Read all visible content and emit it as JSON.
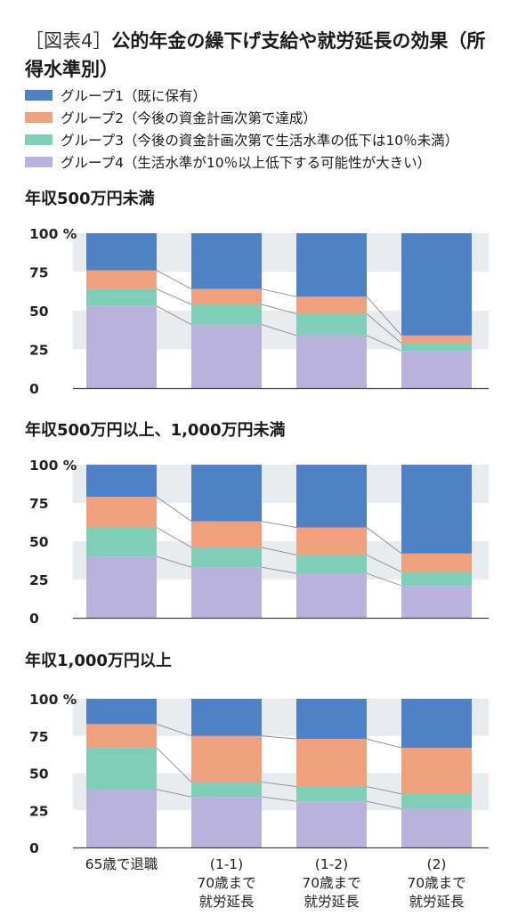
{
  "figure": {
    "tag": "［図表4］",
    "title": "公的年金の繰下げ支給や就労延長の効果（所得水準別）"
  },
  "colors": {
    "group1": "#4f81c7",
    "group2": "#f0a07d",
    "group3": "#7fcfb8",
    "group4": "#b8b2dc",
    "band": "#e9ecef",
    "connector": "#8a8a8a",
    "axis": "#444444"
  },
  "legend": [
    {
      "label": "グループ1（既に保有）",
      "color_key": "group1"
    },
    {
      "label": "グループ2（今後の資金計画次第で達成）",
      "color_key": "group2"
    },
    {
      "label": "グループ3（今後の資金計画次第で生活水準の低下は10％未満）",
      "color_key": "group3"
    },
    {
      "label": "グループ4（生活水準が10％以上低下する可能性が大きい）",
      "color_key": "group4"
    }
  ],
  "chart_data": [
    {
      "type": "bar",
      "stacked": true,
      "title": "年収500万円未満",
      "categories": [
        "65歳で退職",
        "(1-1)\n70歳まで\n就労延長",
        "(1-2)\n70歳まで\n就労延長",
        "(2)\n70歳まで\n就労延長"
      ],
      "ylim": [
        0,
        100
      ],
      "yticks": [
        0,
        25,
        50,
        75,
        100
      ],
      "ytick_labels": [
        "0",
        "25",
        "50",
        "75",
        "100 %"
      ],
      "series": [
        {
          "name": "グループ4（生活水準が10％以上低下する可能性が大きい）",
          "color_key": "group4",
          "values": [
            53,
            41,
            34,
            24
          ]
        },
        {
          "name": "グループ3（今後の資金計画次第で生活水準の低下は10％未満）",
          "color_key": "group3",
          "values": [
            11,
            13,
            14,
            5
          ]
        },
        {
          "name": "グループ2（今後の資金計画次第で達成）",
          "color_key": "group2",
          "values": [
            12,
            10,
            11,
            5
          ]
        },
        {
          "name": "グループ1（既に保有）",
          "color_key": "group1",
          "values": [
            24,
            36,
            41,
            66
          ]
        }
      ]
    },
    {
      "type": "bar",
      "stacked": true,
      "title": "年収500万円以上、1,000万円未満",
      "categories": [
        "65歳で退職",
        "(1-1)\n70歳まで\n就労延長",
        "(1-2)\n70歳まで\n就労延長",
        "(2)\n70歳まで\n就労延長"
      ],
      "ylim": [
        0,
        100
      ],
      "yticks": [
        0,
        25,
        50,
        75,
        100
      ],
      "ytick_labels": [
        "0",
        "25",
        "50",
        "75",
        "100 %"
      ],
      "series": [
        {
          "name": "グループ4（生活水準が10％以上低下する可能性が大きい）",
          "color_key": "group4",
          "values": [
            40,
            33,
            29,
            21
          ]
        },
        {
          "name": "グループ3（今後の資金計画次第で生活水準の低下は10％未満）",
          "color_key": "group3",
          "values": [
            19,
            13,
            12,
            9
          ]
        },
        {
          "name": "グループ2（今後の資金計画次第で達成）",
          "color_key": "group2",
          "values": [
            20,
            17,
            18,
            12
          ]
        },
        {
          "name": "グループ1（既に保有）",
          "color_key": "group1",
          "values": [
            21,
            37,
            41,
            58
          ]
        }
      ]
    },
    {
      "type": "bar",
      "stacked": true,
      "title": "年収1,000万円以上",
      "categories": [
        "65歳で退職",
        "(1-1)\n70歳まで\n就労延長",
        "(1-2)\n70歳まで\n就労延長",
        "(2)\n70歳まで\n就労延長"
      ],
      "ylim": [
        0,
        100
      ],
      "yticks": [
        0,
        25,
        50,
        75,
        100
      ],
      "ytick_labels": [
        "0",
        "25",
        "50",
        "75",
        "100 %"
      ],
      "series": [
        {
          "name": "グループ4（生活水準が10％以上低下する可能性が大きい）",
          "color_key": "group4",
          "values": [
            39,
            34,
            31,
            26
          ]
        },
        {
          "name": "グループ3（今後の資金計画次第で生活水準の低下は10％未満）",
          "color_key": "group3",
          "values": [
            28,
            10,
            10,
            10
          ]
        },
        {
          "name": "グループ2（今後の資金計画次第で達成）",
          "color_key": "group2",
          "values": [
            16,
            31,
            32,
            31
          ]
        },
        {
          "name": "グループ1（既に保有）",
          "color_key": "group1",
          "values": [
            17,
            25,
            27,
            33
          ]
        }
      ]
    }
  ]
}
